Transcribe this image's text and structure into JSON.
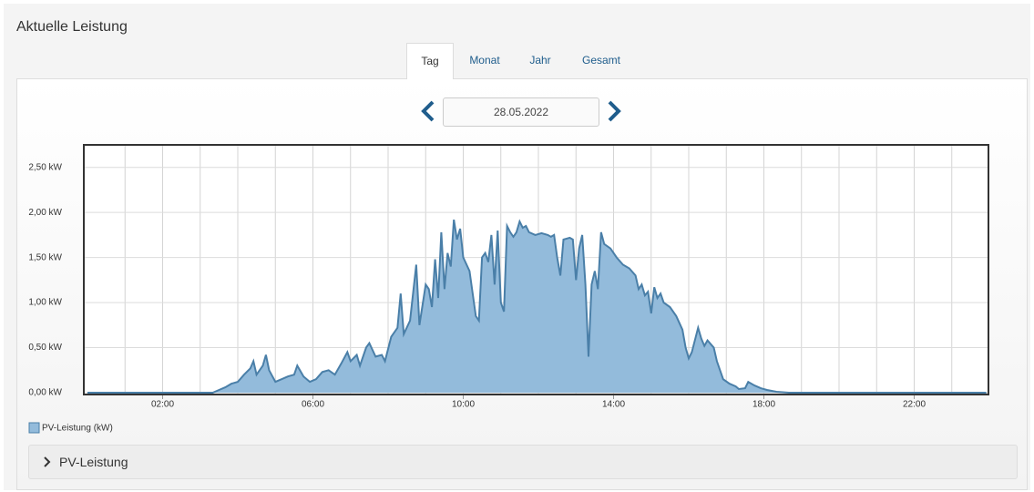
{
  "header": {
    "title": "Aktuelle Leistung"
  },
  "tabs": [
    "Tag",
    "Monat",
    "Jahr",
    "Gesamt"
  ],
  "date": "28.05.2022",
  "chart_data": {
    "type": "area",
    "x": [
      "00:00",
      "03:20",
      "03:30",
      "03:40",
      "03:50",
      "04:00",
      "04:10",
      "04:20",
      "04:25",
      "04:30",
      "04:40",
      "04:45",
      "04:50",
      "05:00",
      "05:10",
      "05:20",
      "05:30",
      "05:35",
      "05:45",
      "05:55",
      "06:05",
      "06:15",
      "06:25",
      "06:35",
      "06:45",
      "06:55",
      "07:00",
      "07:10",
      "07:15",
      "07:25",
      "07:30",
      "07:40",
      "07:50",
      "07:55",
      "08:05",
      "08:15",
      "08:20",
      "08:25",
      "08:35",
      "08:45",
      "08:50",
      "09:00",
      "09:05",
      "09:10",
      "09:15",
      "09:20",
      "09:25",
      "09:30",
      "09:35",
      "09:40",
      "09:45",
      "09:50",
      "09:55",
      "10:00",
      "10:10",
      "10:20",
      "10:25",
      "10:30",
      "10:35",
      "10:40",
      "10:45",
      "10:50",
      "10:55",
      "11:00",
      "11:05",
      "11:10",
      "11:15",
      "11:20",
      "11:25",
      "11:30",
      "11:35",
      "11:40",
      "11:45",
      "11:55",
      "12:05",
      "12:15",
      "12:20",
      "12:25",
      "12:30",
      "12:35",
      "12:40",
      "12:50",
      "12:55",
      "13:00",
      "13:05",
      "13:10",
      "13:15",
      "13:20",
      "13:25",
      "13:30",
      "13:35",
      "13:40",
      "13:45",
      "13:55",
      "14:05",
      "14:15",
      "14:25",
      "14:35",
      "14:40",
      "14:45",
      "14:50",
      "14:55",
      "15:00",
      "15:05",
      "15:10",
      "15:15",
      "15:20",
      "15:30",
      "15:40",
      "15:50",
      "15:55",
      "16:00",
      "16:05",
      "16:15",
      "16:20",
      "16:25",
      "16:30",
      "16:40",
      "16:45",
      "16:55",
      "17:05",
      "17:15",
      "17:20",
      "17:30",
      "17:35",
      "17:45",
      "17:55",
      "18:05",
      "18:20",
      "18:40",
      "23:55"
    ],
    "series": [
      {
        "name": "PV-Leistung (kW)",
        "color": "#4a7fa8",
        "fill": "#93bbdb",
        "values": [
          0,
          0,
          0.03,
          0.06,
          0.1,
          0.12,
          0.2,
          0.27,
          0.35,
          0.2,
          0.3,
          0.42,
          0.25,
          0.12,
          0.15,
          0.18,
          0.2,
          0.3,
          0.18,
          0.12,
          0.15,
          0.23,
          0.25,
          0.2,
          0.32,
          0.45,
          0.35,
          0.42,
          0.3,
          0.5,
          0.55,
          0.4,
          0.42,
          0.35,
          0.62,
          0.72,
          1.1,
          0.65,
          0.8,
          1.42,
          0.75,
          1.2,
          1.15,
          0.95,
          1.48,
          1.05,
          1.78,
          1.15,
          1.55,
          1.4,
          1.92,
          1.7,
          1.82,
          1.5,
          1.35,
          0.85,
          0.8,
          1.5,
          1.55,
          1.45,
          1.75,
          1.2,
          1.8,
          1.0,
          0.9,
          1.85,
          1.78,
          1.73,
          1.78,
          1.9,
          1.83,
          1.85,
          1.78,
          1.75,
          1.77,
          1.75,
          1.73,
          1.75,
          1.5,
          1.3,
          1.7,
          1.72,
          1.7,
          1.25,
          1.6,
          1.75,
          1.2,
          0.4,
          1.2,
          1.35,
          1.15,
          1.78,
          1.65,
          1.6,
          1.5,
          1.42,
          1.38,
          1.3,
          1.15,
          1.2,
          1.08,
          1.12,
          0.88,
          1.17,
          1.05,
          1.1,
          1.0,
          0.95,
          0.85,
          0.7,
          0.5,
          0.38,
          0.45,
          0.72,
          0.6,
          0.52,
          0.58,
          0.5,
          0.35,
          0.15,
          0.1,
          0.07,
          0.04,
          0.05,
          0.12,
          0.08,
          0.05,
          0.03,
          0.01,
          0,
          0
        ]
      }
    ],
    "xlim": [
      "00:00",
      "24:00"
    ],
    "xticks": [
      "02:00",
      "06:00",
      "10:00",
      "14:00",
      "18:00",
      "22:00"
    ],
    "xgrid": [
      "01:00",
      "02:00",
      "03:00",
      "04:00",
      "05:00",
      "06:00",
      "07:00",
      "08:00",
      "09:00",
      "10:00",
      "11:00",
      "12:00",
      "13:00",
      "14:00",
      "15:00",
      "16:00",
      "17:00",
      "18:00",
      "19:00",
      "20:00",
      "21:00",
      "22:00",
      "23:00"
    ],
    "ylim": [
      0,
      2.75
    ],
    "yticks": [
      {
        "value": 0,
        "label": "0,00 kW"
      },
      {
        "value": 0.5,
        "label": "0,50 kW"
      },
      {
        "value": 1,
        "label": "1,00 kW"
      },
      {
        "value": 1.5,
        "label": "1,50 kW"
      },
      {
        "value": 2,
        "label": "2,00 kW"
      },
      {
        "value": 2.5,
        "label": "2,50 kW"
      }
    ],
    "grid": true,
    "legend": "bottom-left"
  },
  "accordion": {
    "title": "PV-Leistung"
  }
}
